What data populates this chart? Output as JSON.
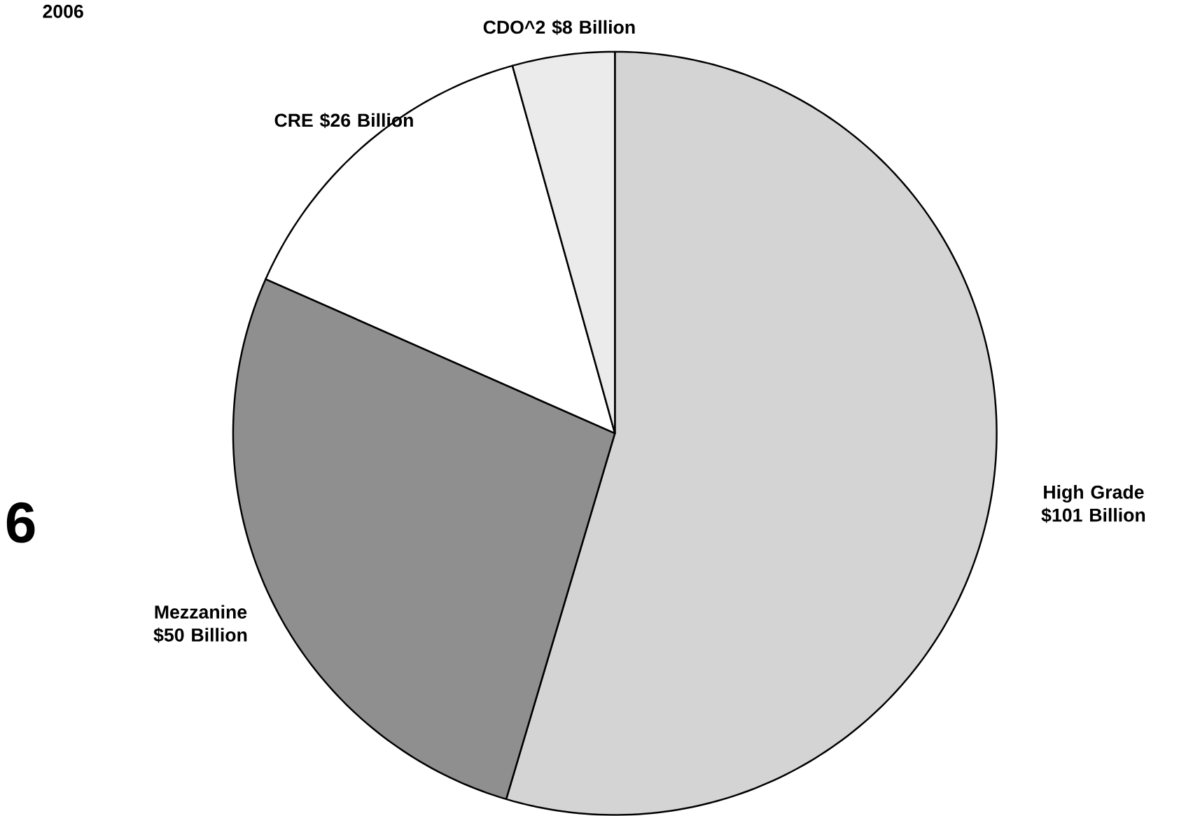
{
  "chart_data": {
    "type": "pie",
    "categories": [
      "High Grade",
      "Mezzanine",
      "CRE",
      "CDO^2"
    ],
    "values": [
      101,
      50,
      26,
      8
    ],
    "value_labels": [
      "$101 Billion",
      "$50 Billion",
      "$26 Billion",
      "$8 Billion"
    ],
    "colors": [
      "#d4d4d4",
      "#8f8f8f",
      "#ffffff",
      "#ebebeb"
    ],
    "annotations": [
      "2006",
      "6"
    ]
  }
}
